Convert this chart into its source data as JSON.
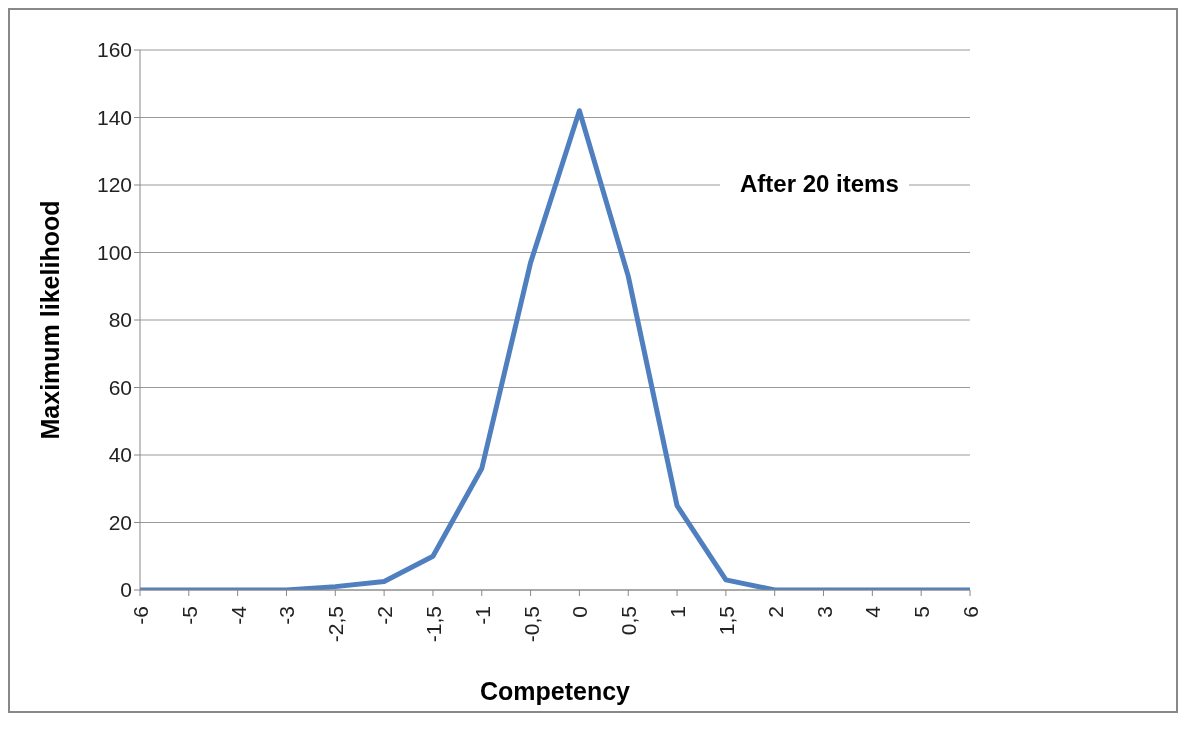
{
  "chart_data": {
    "type": "line",
    "xlabel": "Competency",
    "ylabel": "Maximum likelihood",
    "annotations": [
      "After 20 items"
    ],
    "categories": [
      "-6",
      "-5",
      "-4",
      "-3",
      "-2,5",
      "-2",
      "-1,5",
      "-1",
      "-0,5",
      "0",
      "0,5",
      "1",
      "1,5",
      "2",
      "3",
      "4",
      "5",
      "6"
    ],
    "series": [
      {
        "color": "#4f7fbf",
        "values": [
          0,
          0,
          0,
          0,
          1,
          2.5,
          10,
          36,
          97,
          142,
          93,
          25,
          3,
          0,
          0,
          0,
          0,
          0
        ]
      }
    ],
    "ylim": [
      0,
      160
    ],
    "yticks": [
      0,
      20,
      40,
      60,
      80,
      100,
      120,
      140,
      160
    ],
    "grid": "y",
    "marker": "none",
    "line_style": "solid"
  }
}
